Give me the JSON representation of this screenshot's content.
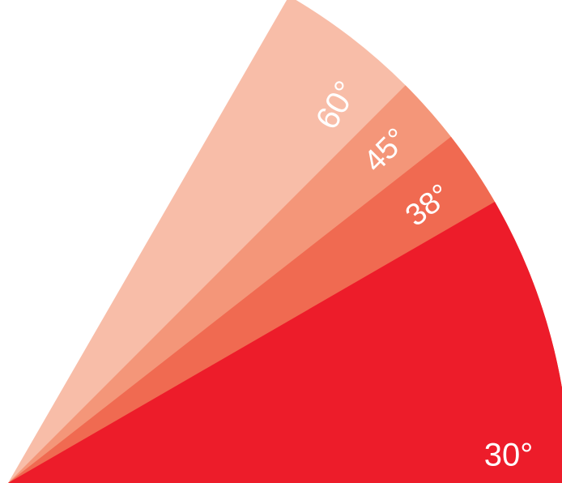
{
  "wedges": [
    {
      "angle_deg": 60,
      "label": "60°",
      "color": "#f8bda8"
    },
    {
      "angle_deg": 45,
      "label": "45°",
      "color": "#f49679"
    },
    {
      "angle_deg": 38,
      "label": "38°",
      "color": "#f06a51"
    },
    {
      "angle_deg": 30,
      "label": "30°",
      "color": "#ed1c2a"
    }
  ]
}
